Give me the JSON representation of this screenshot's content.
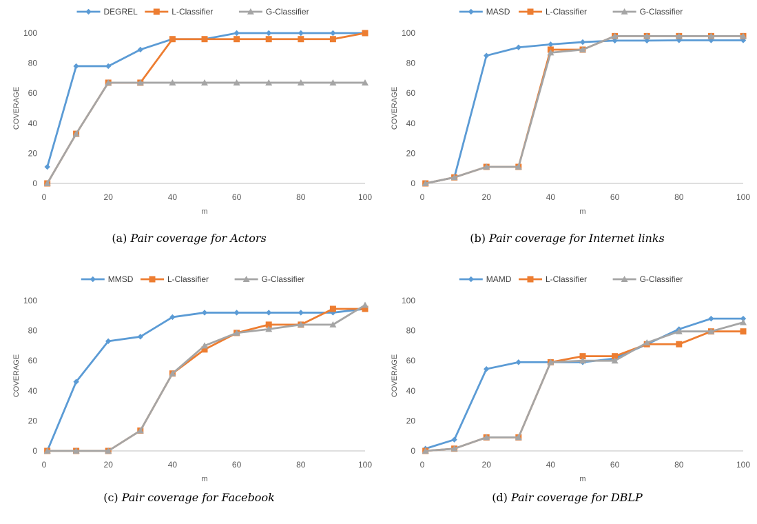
{
  "series_colors": [
    "#5b9bd5",
    "#ed7d31",
    "#a5a5a5"
  ],
  "chart_data": [
    {
      "type": "line",
      "ylabel": "COVERAGE",
      "xlabel": "m",
      "xlim": [
        0,
        100
      ],
      "ylim": [
        0,
        100
      ],
      "xticks": [
        0,
        20,
        40,
        60,
        80,
        100
      ],
      "yticks": [
        0,
        20,
        40,
        60,
        80,
        100
      ],
      "grid": false,
      "legend": "top-center",
      "x": [
        1,
        10,
        20,
        30,
        40,
        50,
        60,
        70,
        80,
        90,
        100
      ],
      "series": [
        {
          "name": "DEGREL",
          "marker": "diamond",
          "values": [
            11,
            78,
            78,
            89,
            96,
            96,
            100,
            100,
            100,
            100,
            100
          ]
        },
        {
          "name": "L-Classifier",
          "marker": "square",
          "values": [
            0,
            33,
            67,
            67,
            96,
            96,
            96,
            96,
            96,
            96,
            100
          ]
        },
        {
          "name": "G-Classifier",
          "marker": "triangle",
          "values": [
            0,
            33,
            67,
            67,
            67,
            67,
            67,
            67,
            67,
            67,
            67
          ]
        }
      ],
      "caption_label": "(a)",
      "caption_text": "Pair coverage for Actors"
    },
    {
      "type": "line",
      "ylabel": "COVERAGE",
      "xlabel": "m",
      "xlim": [
        0,
        100
      ],
      "ylim": [
        0,
        100
      ],
      "xticks": [
        0,
        20,
        40,
        60,
        80,
        100
      ],
      "yticks": [
        0,
        20,
        40,
        60,
        80,
        100
      ],
      "grid": false,
      "legend": "top-center",
      "x": [
        1,
        10,
        20,
        30,
        40,
        50,
        60,
        70,
        80,
        90,
        100
      ],
      "series": [
        {
          "name": "MASD",
          "marker": "diamond",
          "values": [
            0,
            4,
            85,
            90.5,
            92.5,
            94,
            95,
            95,
            95.2,
            95.2,
            95.2
          ]
        },
        {
          "name": "L-Classifier",
          "marker": "square",
          "values": [
            0,
            4,
            11,
            11,
            89,
            89,
            98,
            98,
            98,
            98,
            98
          ]
        },
        {
          "name": "G-Classifier",
          "marker": "triangle",
          "values": [
            0,
            4,
            11,
            11,
            87,
            89,
            98,
            98,
            98,
            98,
            98
          ]
        }
      ],
      "caption_label": "(b)",
      "caption_text": "Pair coverage for Internet links"
    },
    {
      "type": "line",
      "ylabel": "COVERAGE",
      "xlabel": "m",
      "xlim": [
        0,
        100
      ],
      "ylim": [
        0,
        100
      ],
      "xticks": [
        0,
        20,
        40,
        60,
        80,
        100
      ],
      "yticks": [
        0,
        20,
        40,
        60,
        80,
        100
      ],
      "grid": false,
      "legend": "top-center",
      "x": [
        1,
        10,
        20,
        30,
        40,
        50,
        60,
        70,
        80,
        90,
        100
      ],
      "series": [
        {
          "name": "MMSD",
          "marker": "diamond",
          "values": [
            0,
            46,
            73,
            76,
            89,
            92,
            92,
            92,
            92,
            92,
            94.5
          ]
        },
        {
          "name": "L-Classifier",
          "marker": "square",
          "values": [
            0,
            0,
            0,
            13.5,
            51.5,
            67.5,
            78.5,
            84,
            84,
            94.5,
            94.5
          ]
        },
        {
          "name": "G-Classifier",
          "marker": "triangle",
          "values": [
            0,
            0,
            0,
            13.5,
            51.5,
            70,
            78.5,
            81,
            84,
            84,
            97
          ]
        }
      ],
      "caption_label": "(c)",
      "caption_text": "Pair coverage for Facebook"
    },
    {
      "type": "line",
      "ylabel": "COVERAGE",
      "xlabel": "m",
      "xlim": [
        0,
        100
      ],
      "ylim": [
        0,
        100
      ],
      "xticks": [
        0,
        20,
        40,
        60,
        80,
        100
      ],
      "yticks": [
        0,
        20,
        40,
        60,
        80,
        100
      ],
      "grid": false,
      "legend": "top-center",
      "x": [
        1,
        10,
        20,
        30,
        40,
        50,
        60,
        70,
        80,
        90,
        100
      ],
      "series": [
        {
          "name": "MAMD",
          "marker": "diamond",
          "values": [
            1.5,
            7.5,
            54.5,
            59,
            59,
            59,
            61.5,
            71,
            81,
            88,
            88
          ]
        },
        {
          "name": "L-Classifier",
          "marker": "square",
          "values": [
            0,
            1.5,
            9,
            9,
            59,
            63,
            63,
            71,
            71,
            79.5,
            79.5
          ]
        },
        {
          "name": "G-Classifier",
          "marker": "triangle",
          "values": [
            0,
            1.5,
            9,
            9,
            59,
            60,
            60,
            72,
            79.5,
            79.5,
            85.5
          ]
        }
      ],
      "caption_label": "(d)",
      "caption_text": "Pair coverage for DBLP"
    }
  ]
}
